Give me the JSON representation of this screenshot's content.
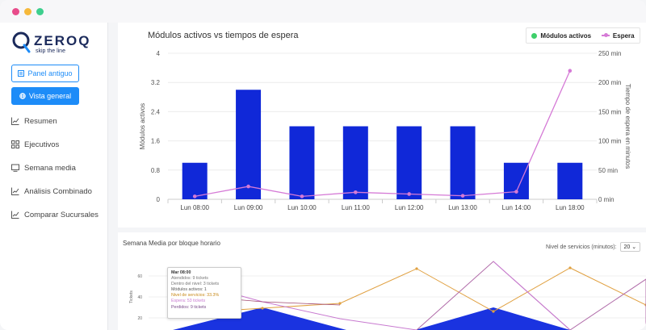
{
  "app": {
    "logo_name": "ZEROQ",
    "logo_tagline": "skip the line"
  },
  "sidebar": {
    "old_panel_button": "Panel antiguo",
    "general_view_button": "Vista general",
    "items": [
      {
        "label": "Resumen",
        "icon": "line-chart-icon"
      },
      {
        "label": "Ejecutivos",
        "icon": "grid-icon"
      },
      {
        "label": "Semana media",
        "icon": "monitor-icon"
      },
      {
        "label": "Análisis Combinado",
        "icon": "line-chart-icon"
      },
      {
        "label": "Comparar Sucursales",
        "icon": "line-chart-icon"
      }
    ]
  },
  "chart_main": {
    "title": "Módulos activos vs tiempos de espera",
    "legend": {
      "bars": "Módulos activos",
      "line": "Espera"
    },
    "colors": {
      "bars": "#1028d8",
      "line": "#d57ad6",
      "legend_bar_dot": "#3ecf6a"
    },
    "chart_data": {
      "type": "bar",
      "categories": [
        "Lun 08:00",
        "Lun 09:00",
        "Lun 10:00",
        "Lun 11:00",
        "Lun 12:00",
        "Lun 13:00",
        "Lun 14:00",
        "Lun 18:00"
      ],
      "series": [
        {
          "name": "Módulos activos",
          "type": "bar",
          "axis": "left",
          "values": [
            1,
            3,
            2,
            2,
            2,
            2,
            1,
            1
          ]
        },
        {
          "name": "Espera",
          "type": "line",
          "axis": "right",
          "values": [
            5,
            22,
            5,
            12,
            9,
            6,
            13,
            220
          ]
        }
      ],
      "ylabel": "Módulos activos",
      "y2label": "Tiempo de espera en minutos",
      "ylim": [
        0,
        4
      ],
      "yticks": [
        "0",
        "0.8",
        "1.6",
        "2.4",
        "3.2",
        "4"
      ],
      "y2lim": [
        0,
        250
      ],
      "y2ticks": [
        "0 min",
        "50 min",
        "100 min",
        "150 min",
        "200 min",
        "250 min"
      ],
      "grid": true
    }
  },
  "chart_week": {
    "title": "Semana Media por bloque horario",
    "service_level_label": "Nivel de servicios (minutos):",
    "service_level_value": "20",
    "ylabel": "Tickets",
    "yticks": [
      "20",
      "40",
      "60"
    ],
    "tooltip": {
      "title": "Mar 08:00",
      "rows": [
        {
          "text": "Atendidos: 9 tickets",
          "color": "#777777"
        },
        {
          "text": "Dentro del nivel: 3 tickets",
          "color": "#777777"
        },
        {
          "text": "Módulos activos: 1",
          "color": "#555555"
        },
        {
          "text": "Nivel de servicios: 33.3%",
          "color": "#c88a1a"
        },
        {
          "text": "Espera: 53 tickets",
          "color": "#c87ad0"
        },
        {
          "text": "Perdidos: 9 tickets",
          "color": "#7a4a8a"
        }
      ]
    }
  }
}
